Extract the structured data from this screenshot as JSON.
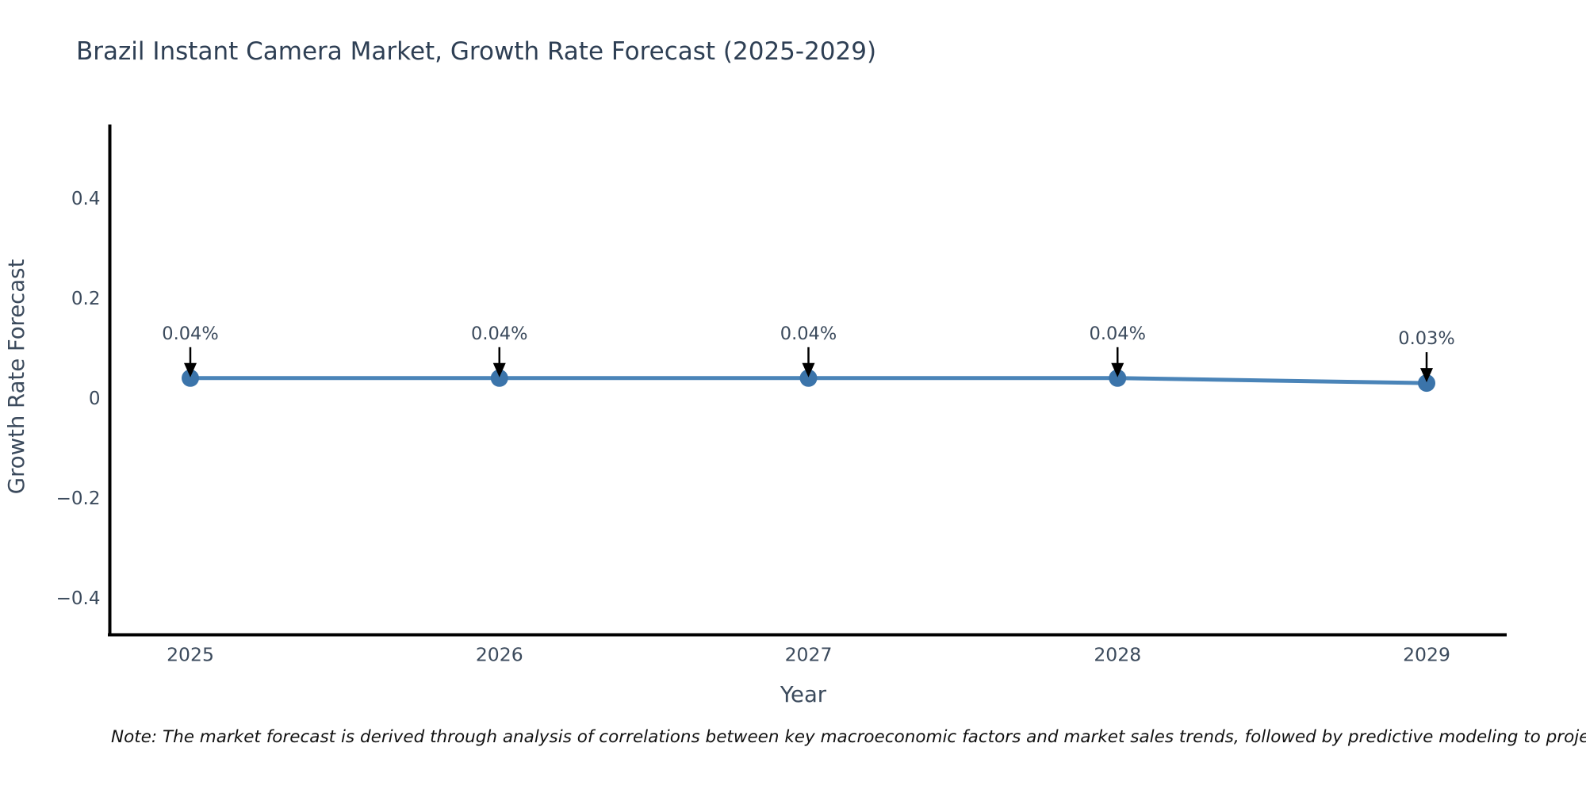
{
  "title": "Brazil Instant Camera Market, Growth Rate Forecast (2025-2029)",
  "note": "Note: The market forecast is derived through analysis of correlations between key macroeconomic factors and market sales trends, followed by predictive modeling to project future sa",
  "chart_data": {
    "type": "line",
    "title": "Brazil Instant Camera Market, Growth Rate Forecast (2025-2029)",
    "xlabel": "Year",
    "ylabel": "Growth Rate Forecast",
    "categories": [
      "2025",
      "2026",
      "2027",
      "2028",
      "2029"
    ],
    "series": [
      {
        "name": "Growth Rate Forecast",
        "values": [
          0.04,
          0.04,
          0.04,
          0.04,
          0.03
        ]
      }
    ],
    "point_labels": [
      "0.04%",
      "0.04%",
      "0.04%",
      "0.04%",
      "0.03%"
    ],
    "yticks": [
      0.4,
      0.2,
      0,
      -0.2,
      -0.4
    ],
    "ytick_labels": [
      "0.4",
      "0.2",
      "0",
      "−0.2",
      "−0.4"
    ],
    "ylim": [
      -0.51,
      0.55
    ],
    "grid": false,
    "legend_position": "none",
    "annotation_style": "value labels with down arrows pointing at markers",
    "colors": {
      "line": "#4a84b8",
      "marker": "#3b74aa",
      "axis": "#000000",
      "tick_text": "#3b4a5c",
      "title_text": "#2e3f54",
      "note_text": "#111111",
      "background": "#ffffff"
    }
  }
}
